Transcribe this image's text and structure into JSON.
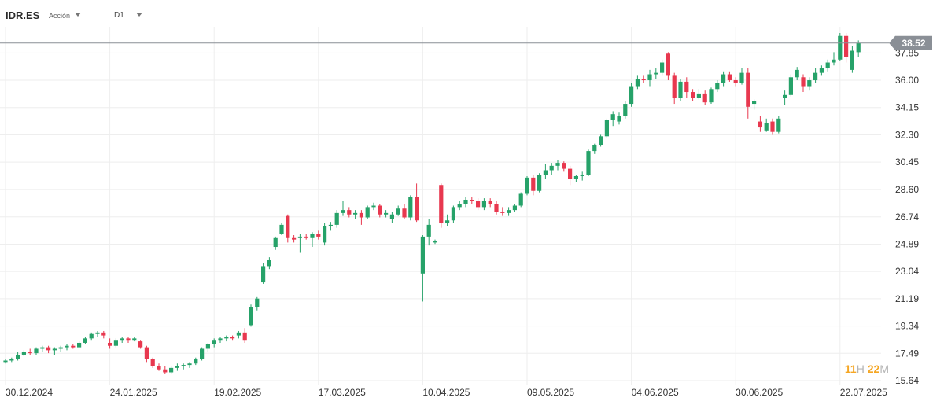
{
  "toolbar": {
    "symbol": "IDR.ES",
    "asset_type": "Acción",
    "timeframe": "D1",
    "symbol_caret_icon": "caret-down-icon",
    "timeframe_caret_icon": "caret-down-icon"
  },
  "countdown": {
    "hours": "11",
    "hours_unit": "H",
    "minutes": "22",
    "minutes_unit": "M"
  },
  "colors": {
    "up": "#26a269",
    "down": "#e8384f",
    "badge": "#8a8f96",
    "grid": "#eeeeee"
  },
  "chart_data": {
    "type": "candlestick",
    "symbol": "IDR.ES",
    "timeframe": "D1",
    "current_price": "38.52",
    "ylim": [
      15.64,
      39.2
    ],
    "yticks": [
      "37.85",
      "36.00",
      "34.15",
      "32.30",
      "30.45",
      "28.60",
      "26.74",
      "24.89",
      "23.04",
      "21.19",
      "19.34",
      "17.49",
      "15.64"
    ],
    "xticks": [
      {
        "label": "30.12.2024",
        "index": 0
      },
      {
        "label": "24.01.2025",
        "index": 17
      },
      {
        "label": "19.02.2025",
        "index": 34
      },
      {
        "label": "17.03.2025",
        "index": 51
      },
      {
        "label": "10.04.2025",
        "index": 68
      },
      {
        "label": "09.05.2025",
        "index": 85
      },
      {
        "label": "04.06.2025",
        "index": 102
      },
      {
        "label": "30.06.2025",
        "index": 119
      },
      {
        "label": "22.07.2025",
        "index": 136
      }
    ],
    "candles": [
      [
        16.9,
        17.1,
        16.8,
        17.0
      ],
      [
        17.0,
        17.2,
        16.9,
        17.1
      ],
      [
        17.1,
        17.6,
        17.0,
        17.4
      ],
      [
        17.4,
        17.7,
        17.3,
        17.6
      ],
      [
        17.6,
        17.8,
        17.4,
        17.5
      ],
      [
        17.5,
        17.9,
        17.4,
        17.8
      ],
      [
        17.8,
        18.0,
        17.6,
        17.9
      ],
      [
        17.9,
        18.0,
        17.5,
        17.7
      ],
      [
        17.7,
        17.9,
        17.4,
        17.8
      ],
      [
        17.8,
        18.0,
        17.6,
        17.9
      ],
      [
        17.9,
        18.1,
        17.7,
        18.0
      ],
      [
        18.0,
        18.1,
        17.8,
        17.9
      ],
      [
        17.9,
        18.3,
        17.9,
        18.2
      ],
      [
        18.2,
        18.6,
        18.1,
        18.5
      ],
      [
        18.5,
        18.9,
        18.4,
        18.8
      ],
      [
        18.8,
        19.0,
        18.6,
        18.9
      ],
      [
        18.9,
        19.0,
        18.5,
        18.7
      ],
      [
        18.2,
        18.5,
        17.8,
        18.0
      ],
      [
        18.0,
        18.5,
        17.9,
        18.4
      ],
      [
        18.4,
        18.6,
        18.2,
        18.5
      ],
      [
        18.5,
        18.6,
        18.2,
        18.4
      ],
      [
        18.4,
        18.6,
        18.3,
        18.5
      ],
      [
        18.3,
        18.4,
        17.8,
        17.9
      ],
      [
        17.9,
        18.0,
        16.9,
        17.1
      ],
      [
        17.1,
        17.2,
        16.5,
        16.6
      ],
      [
        16.6,
        16.8,
        16.3,
        16.4
      ],
      [
        16.4,
        16.6,
        16.1,
        16.2
      ],
      [
        16.2,
        16.6,
        16.1,
        16.5
      ],
      [
        16.5,
        16.8,
        16.3,
        16.6
      ],
      [
        16.6,
        16.8,
        16.4,
        16.7
      ],
      [
        16.7,
        16.9,
        16.5,
        16.8
      ],
      [
        16.8,
        17.2,
        16.7,
        17.1
      ],
      [
        17.1,
        17.9,
        17.0,
        17.8
      ],
      [
        17.8,
        18.2,
        17.6,
        18.1
      ],
      [
        18.1,
        18.5,
        17.9,
        18.4
      ],
      [
        18.4,
        18.6,
        18.2,
        18.5
      ],
      [
        18.5,
        18.7,
        18.3,
        18.6
      ],
      [
        18.6,
        18.7,
        18.4,
        18.5
      ],
      [
        18.7,
        19.0,
        18.5,
        18.9
      ],
      [
        18.9,
        19.2,
        18.2,
        18.4
      ],
      [
        19.4,
        20.8,
        19.3,
        20.6
      ],
      [
        20.6,
        21.3,
        20.4,
        21.2
      ],
      [
        22.3,
        23.6,
        22.2,
        23.4
      ],
      [
        23.4,
        24.0,
        23.2,
        23.8
      ],
      [
        24.7,
        25.4,
        24.5,
        25.3
      ],
      [
        25.6,
        26.3,
        25.5,
        26.2
      ],
      [
        26.8,
        26.9,
        25.0,
        25.3
      ],
      [
        25.3,
        25.5,
        25.0,
        25.2
      ],
      [
        25.3,
        25.6,
        24.3,
        25.4
      ],
      [
        25.4,
        25.6,
        25.2,
        25.3
      ],
      [
        25.3,
        25.7,
        24.7,
        25.6
      ],
      [
        25.6,
        25.8,
        25.2,
        25.4
      ],
      [
        25.0,
        26.3,
        24.8,
        26.1
      ],
      [
        26.1,
        26.4,
        25.8,
        26.2
      ],
      [
        26.2,
        27.2,
        26.0,
        27.0
      ],
      [
        27.0,
        27.8,
        26.8,
        27.2
      ],
      [
        27.2,
        27.4,
        26.7,
        26.9
      ],
      [
        26.9,
        27.2,
        26.6,
        27.0
      ],
      [
        27.0,
        27.2,
        26.2,
        26.7
      ],
      [
        26.7,
        27.5,
        26.6,
        27.4
      ],
      [
        27.4,
        27.7,
        27.2,
        27.5
      ],
      [
        27.5,
        27.6,
        26.7,
        26.9
      ],
      [
        26.9,
        27.2,
        26.7,
        27.0
      ],
      [
        26.6,
        27.1,
        26.3,
        26.9
      ],
      [
        26.9,
        27.5,
        26.8,
        27.3
      ],
      [
        27.3,
        27.6,
        26.6,
        26.7
      ],
      [
        26.7,
        28.2,
        26.5,
        28.1
      ],
      [
        28.1,
        29.0,
        26.4,
        26.5
      ],
      [
        22.9,
        25.5,
        21.0,
        25.4
      ],
      [
        25.4,
        26.6,
        24.8,
        26.2
      ],
      [
        25.0,
        25.2,
        24.9,
        25.1
      ],
      [
        28.9,
        29.0,
        26.0,
        26.3
      ],
      [
        26.3,
        26.9,
        26.1,
        26.5
      ],
      [
        26.5,
        27.5,
        26.3,
        27.4
      ],
      [
        27.4,
        27.8,
        27.2,
        27.6
      ],
      [
        27.6,
        28.1,
        27.4,
        27.9
      ],
      [
        27.9,
        28.1,
        27.6,
        27.8
      ],
      [
        27.8,
        28.0,
        27.2,
        27.4
      ],
      [
        27.4,
        28.0,
        27.2,
        27.8
      ],
      [
        27.8,
        28.0,
        27.4,
        27.6
      ],
      [
        27.6,
        27.8,
        26.9,
        27.1
      ],
      [
        27.1,
        27.4,
        26.8,
        27.0
      ],
      [
        27.0,
        27.4,
        26.8,
        27.2
      ],
      [
        27.2,
        27.6,
        27.1,
        27.5
      ],
      [
        27.5,
        28.4,
        27.4,
        28.3
      ],
      [
        28.3,
        29.5,
        28.2,
        29.4
      ],
      [
        29.4,
        29.6,
        28.2,
        28.5
      ],
      [
        28.5,
        29.7,
        28.4,
        29.6
      ],
      [
        29.6,
        30.3,
        29.3,
        29.9
      ],
      [
        29.9,
        30.4,
        29.6,
        30.2
      ],
      [
        30.2,
        30.6,
        29.9,
        30.4
      ],
      [
        30.4,
        30.5,
        29.8,
        30.0
      ],
      [
        30.0,
        30.2,
        28.9,
        29.3
      ],
      [
        29.3,
        29.6,
        29.1,
        29.5
      ],
      [
        29.5,
        29.8,
        29.2,
        29.6
      ],
      [
        29.6,
        31.3,
        29.5,
        31.2
      ],
      [
        31.2,
        31.7,
        31.0,
        31.6
      ],
      [
        31.6,
        32.3,
        31.5,
        32.2
      ],
      [
        32.2,
        33.4,
        32.1,
        33.3
      ],
      [
        33.3,
        33.9,
        32.9,
        33.7
      ],
      [
        33.2,
        33.8,
        33.0,
        33.6
      ],
      [
        33.6,
        34.6,
        33.4,
        34.4
      ],
      [
        34.4,
        35.8,
        34.2,
        35.6
      ],
      [
        35.6,
        36.3,
        35.4,
        36.1
      ],
      [
        36.1,
        36.3,
        35.8,
        36.0
      ],
      [
        36.0,
        36.7,
        35.6,
        36.4
      ],
      [
        36.4,
        36.8,
        36.1,
        36.5
      ],
      [
        36.5,
        37.4,
        36.3,
        37.2
      ],
      [
        37.8,
        37.9,
        36.0,
        36.3
      ],
      [
        36.3,
        36.5,
        34.4,
        34.8
      ],
      [
        34.8,
        36.1,
        34.6,
        35.9
      ],
      [
        35.9,
        36.2,
        34.8,
        35.2
      ],
      [
        35.2,
        35.4,
        34.6,
        34.8
      ],
      [
        34.8,
        35.4,
        34.7,
        35.1
      ],
      [
        35.1,
        35.3,
        34.3,
        34.5
      ],
      [
        34.5,
        35.5,
        34.4,
        35.4
      ],
      [
        35.4,
        36.0,
        35.2,
        35.8
      ],
      [
        35.8,
        36.6,
        35.6,
        36.4
      ],
      [
        36.4,
        36.6,
        35.9,
        36.0
      ],
      [
        36.0,
        36.2,
        35.6,
        35.8
      ],
      [
        35.8,
        36.8,
        35.7,
        36.5
      ],
      [
        36.5,
        36.8,
        33.4,
        34.2
      ],
      [
        34.4,
        34.7,
        34.0,
        34.6
      ],
      [
        33.2,
        33.6,
        32.5,
        32.8
      ],
      [
        32.6,
        33.4,
        32.5,
        33.1
      ],
      [
        33.2,
        33.4,
        32.3,
        32.5
      ],
      [
        32.5,
        33.6,
        32.4,
        33.4
      ],
      [
        34.8,
        35.3,
        34.3,
        35.0
      ],
      [
        35.0,
        36.4,
        34.9,
        36.2
      ],
      [
        36.2,
        36.9,
        36.0,
        36.7
      ],
      [
        36.2,
        36.4,
        35.2,
        35.6
      ],
      [
        35.6,
        36.2,
        35.3,
        36.0
      ],
      [
        36.0,
        36.8,
        35.8,
        36.5
      ],
      [
        36.5,
        37.0,
        36.3,
        36.8
      ],
      [
        36.8,
        37.4,
        36.6,
        37.2
      ],
      [
        37.2,
        37.9,
        37.0,
        37.4
      ],
      [
        37.4,
        39.2,
        37.3,
        39.0
      ],
      [
        39.0,
        39.2,
        37.2,
        37.6
      ],
      [
        36.7,
        38.3,
        36.5,
        38.0
      ],
      [
        37.9,
        38.7,
        37.6,
        38.52
      ]
    ]
  }
}
